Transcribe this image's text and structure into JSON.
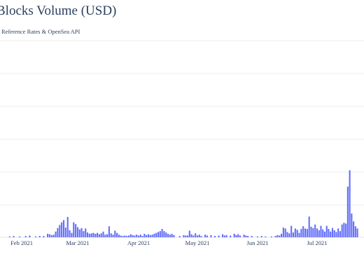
{
  "chart_data": {
    "type": "bar",
    "title": "Blocks Volume (USD)",
    "subtitle": "Reference Rates & OpenSea API",
    "x_tick_labels": [
      "Feb 2021",
      "Mar 2021",
      "Apr 2021",
      "May 2021",
      "Jun 2021",
      "Jul 2021"
    ],
    "x_range": [
      "2021-01-22",
      "2021-07-22"
    ],
    "grid": true,
    "bar_color": "#636efa",
    "series": [
      {
        "values": [
          [
            2021,
            1,
            26,
            0.2
          ],
          [
            2021,
            1,
            28,
            0.3
          ],
          [
            2021,
            1,
            31,
            0.2
          ],
          [
            2021,
            2,
            3,
            0.3
          ],
          [
            2021,
            2,
            5,
            0.4
          ],
          [
            2021,
            2,
            8,
            0.2
          ],
          [
            2021,
            2,
            10,
            0.3
          ],
          [
            2021,
            2,
            12,
            0.3
          ],
          [
            2021,
            2,
            14,
            0.8
          ],
          [
            2021,
            2,
            15,
            0.7
          ],
          [
            2021,
            2,
            16,
            0.5
          ],
          [
            2021,
            2,
            17,
            0.6
          ],
          [
            2021,
            2,
            18,
            1.3
          ],
          [
            2021,
            2,
            19,
            2.1
          ],
          [
            2021,
            2,
            20,
            2.8
          ],
          [
            2021,
            2,
            21,
            3.4
          ],
          [
            2021,
            2,
            22,
            3.9
          ],
          [
            2021,
            2,
            23,
            2.2
          ],
          [
            2021,
            2,
            24,
            4.6
          ],
          [
            2021,
            2,
            25,
            1.6
          ],
          [
            2021,
            2,
            26,
            1.0
          ],
          [
            2021,
            2,
            27,
            3.4
          ],
          [
            2021,
            2,
            28,
            3.0
          ],
          [
            2021,
            3,
            1,
            2.3
          ],
          [
            2021,
            3,
            2,
            1.8
          ],
          [
            2021,
            3,
            3,
            2.1
          ],
          [
            2021,
            3,
            4,
            1.4
          ],
          [
            2021,
            3,
            5,
            2.0
          ],
          [
            2021,
            3,
            6,
            1.1
          ],
          [
            2021,
            3,
            7,
            0.8
          ],
          [
            2021,
            3,
            8,
            0.9
          ],
          [
            2021,
            3,
            9,
            1.0
          ],
          [
            2021,
            3,
            10,
            0.8
          ],
          [
            2021,
            3,
            11,
            1.0
          ],
          [
            2021,
            3,
            12,
            0.7
          ],
          [
            2021,
            3,
            13,
            0.9
          ],
          [
            2021,
            3,
            14,
            1.3
          ],
          [
            2021,
            3,
            15,
            0.6
          ],
          [
            2021,
            3,
            16,
            0.7
          ],
          [
            2021,
            3,
            17,
            2.5
          ],
          [
            2021,
            3,
            18,
            0.9
          ],
          [
            2021,
            3,
            19,
            0.6
          ],
          [
            2021,
            3,
            20,
            1.5
          ],
          [
            2021,
            3,
            21,
            1.0
          ],
          [
            2021,
            3,
            22,
            0.6
          ],
          [
            2021,
            3,
            23,
            0.4
          ],
          [
            2021,
            3,
            24,
            0.3
          ],
          [
            2021,
            3,
            25,
            0.4
          ],
          [
            2021,
            3,
            26,
            0.3
          ],
          [
            2021,
            3,
            27,
            0.4
          ],
          [
            2021,
            3,
            28,
            0.7
          ],
          [
            2021,
            3,
            29,
            0.5
          ],
          [
            2021,
            3,
            30,
            0.4
          ],
          [
            2021,
            3,
            31,
            0.6
          ],
          [
            2021,
            4,
            1,
            0.4
          ],
          [
            2021,
            4,
            2,
            0.6
          ],
          [
            2021,
            4,
            3,
            0.3
          ],
          [
            2021,
            4,
            4,
            0.8
          ],
          [
            2021,
            4,
            5,
            0.5
          ],
          [
            2021,
            4,
            6,
            0.7
          ],
          [
            2021,
            4,
            7,
            0.5
          ],
          [
            2021,
            4,
            8,
            0.6
          ],
          [
            2021,
            4,
            9,
            0.8
          ],
          [
            2021,
            4,
            10,
            1.0
          ],
          [
            2021,
            4,
            11,
            1.2
          ],
          [
            2021,
            4,
            12,
            1.4
          ],
          [
            2021,
            4,
            13,
            1.9
          ],
          [
            2021,
            4,
            14,
            1.4
          ],
          [
            2021,
            4,
            15,
            1.1
          ],
          [
            2021,
            4,
            16,
            0.8
          ],
          [
            2021,
            4,
            17,
            0.6
          ],
          [
            2021,
            4,
            18,
            0.8
          ],
          [
            2021,
            4,
            19,
            0.5
          ],
          [
            2021,
            4,
            22,
            0.3
          ],
          [
            2021,
            4,
            24,
            0.5
          ],
          [
            2021,
            4,
            25,
            0.4
          ],
          [
            2021,
            4,
            26,
            0.4
          ],
          [
            2021,
            4,
            27,
            1.5
          ],
          [
            2021,
            4,
            28,
            0.7
          ],
          [
            2021,
            4,
            29,
            0.4
          ],
          [
            2021,
            4,
            30,
            0.9
          ],
          [
            2021,
            5,
            1,
            0.4
          ],
          [
            2021,
            5,
            2,
            0.6
          ],
          [
            2021,
            5,
            3,
            0.3
          ],
          [
            2021,
            5,
            5,
            0.6
          ],
          [
            2021,
            5,
            6,
            0.4
          ],
          [
            2021,
            5,
            8,
            0.5
          ],
          [
            2021,
            5,
            10,
            0.3
          ],
          [
            2021,
            5,
            12,
            0.4
          ],
          [
            2021,
            5,
            14,
            0.7
          ],
          [
            2021,
            5,
            15,
            0.4
          ],
          [
            2021,
            5,
            16,
            0.5
          ],
          [
            2021,
            5,
            18,
            0.4
          ],
          [
            2021,
            5,
            20,
            0.8
          ],
          [
            2021,
            5,
            21,
            0.5
          ],
          [
            2021,
            5,
            22,
            0.7
          ],
          [
            2021,
            5,
            23,
            0.4
          ],
          [
            2021,
            5,
            25,
            0.6
          ],
          [
            2021,
            5,
            26,
            0.4
          ],
          [
            2021,
            5,
            27,
            0.3
          ],
          [
            2021,
            5,
            29,
            0.3
          ],
          [
            2021,
            6,
            1,
            0.2
          ],
          [
            2021,
            6,
            3,
            0.3
          ],
          [
            2021,
            6,
            5,
            0.2
          ],
          [
            2021,
            6,
            8,
            0.2
          ],
          [
            2021,
            6,
            10,
            0.3
          ],
          [
            2021,
            6,
            11,
            0.5
          ],
          [
            2021,
            6,
            12,
            0.4
          ],
          [
            2021,
            6,
            13,
            0.8
          ],
          [
            2021,
            6,
            14,
            2.2
          ],
          [
            2021,
            6,
            15,
            2.0
          ],
          [
            2021,
            6,
            16,
            1.2
          ],
          [
            2021,
            6,
            17,
            0.9
          ],
          [
            2021,
            6,
            18,
            2.6
          ],
          [
            2021,
            6,
            19,
            1.1
          ],
          [
            2021,
            6,
            20,
            2.0
          ],
          [
            2021,
            6,
            21,
            1.7
          ],
          [
            2021,
            6,
            22,
            1.0
          ],
          [
            2021,
            6,
            23,
            1.9
          ],
          [
            2021,
            6,
            24,
            2.5
          ],
          [
            2021,
            6,
            25,
            2.0
          ],
          [
            2021,
            6,
            26,
            1.9
          ],
          [
            2021,
            6,
            27,
            4.7
          ],
          [
            2021,
            6,
            28,
            2.4
          ],
          [
            2021,
            6,
            29,
            2.1
          ],
          [
            2021,
            6,
            30,
            2.9
          ],
          [
            2021,
            7,
            1,
            2.0
          ],
          [
            2021,
            7,
            2,
            1.6
          ],
          [
            2021,
            7,
            3,
            2.6
          ],
          [
            2021,
            7,
            4,
            1.8
          ],
          [
            2021,
            7,
            5,
            1.3
          ],
          [
            2021,
            7,
            6,
            2.6
          ],
          [
            2021,
            7,
            7,
            1.9
          ],
          [
            2021,
            7,
            8,
            1.3
          ],
          [
            2021,
            7,
            9,
            2.1
          ],
          [
            2021,
            7,
            10,
            1.6
          ],
          [
            2021,
            7,
            11,
            1.2
          ],
          [
            2021,
            7,
            12,
            2.0
          ],
          [
            2021,
            7,
            13,
            1.4
          ],
          [
            2021,
            7,
            14,
            2.9
          ],
          [
            2021,
            7,
            15,
            3.3
          ],
          [
            2021,
            7,
            16,
            3.1
          ],
          [
            2021,
            7,
            17,
            11.5
          ],
          [
            2021,
            7,
            18,
            15.2
          ],
          [
            2021,
            7,
            19,
            5.4
          ],
          [
            2021,
            7,
            20,
            3.6
          ],
          [
            2021,
            7,
            21,
            2.5
          ],
          [
            2021,
            7,
            22,
            2.0
          ]
        ]
      }
    ]
  }
}
